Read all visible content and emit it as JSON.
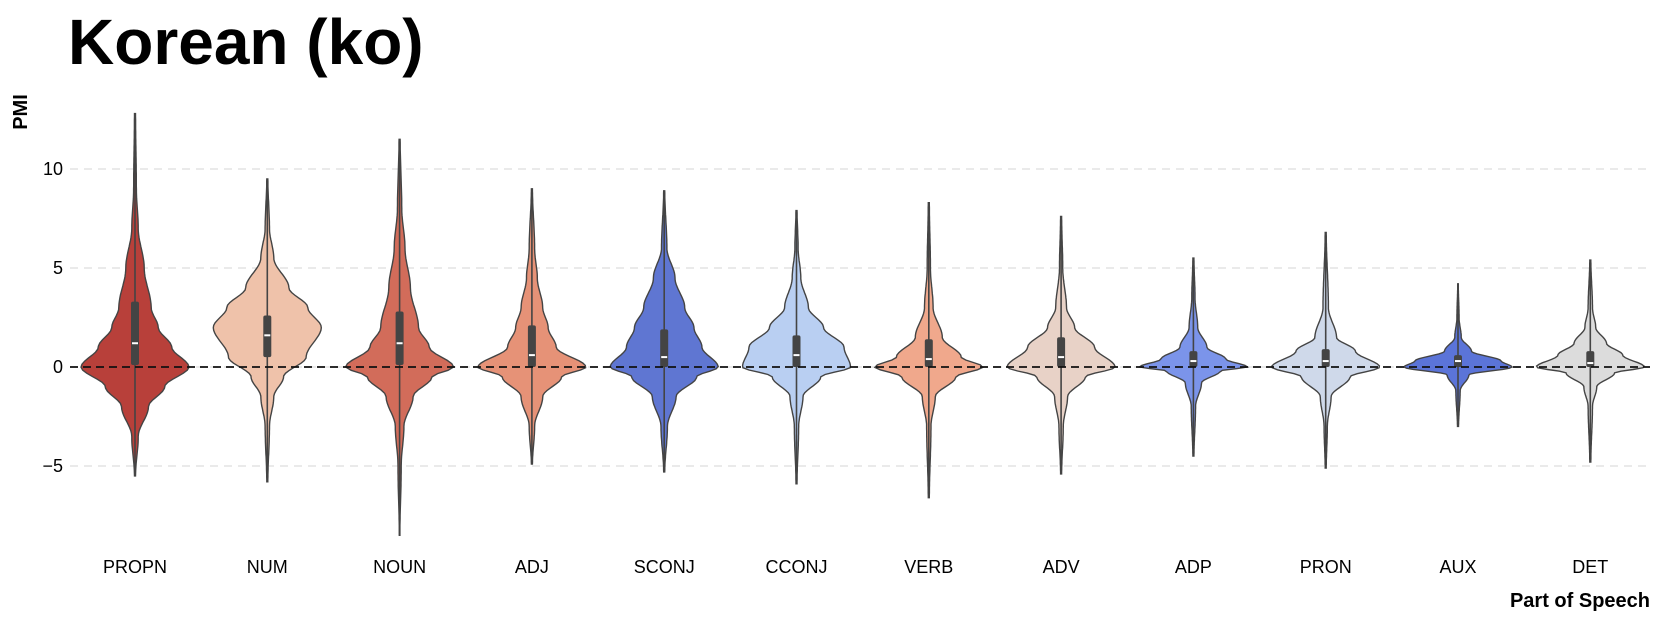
{
  "chart_data": {
    "type": "violin",
    "title": "Korean (ko)",
    "xlabel": "Part of Speech",
    "ylabel": "PMI",
    "ylim": [
      -8.8,
      13.5
    ],
    "yticks": [
      10,
      5,
      0,
      -5
    ],
    "ytick_labels": [
      "10",
      "5",
      "0",
      "−5"
    ],
    "grid": "horizontal dashed",
    "reference_line": 0,
    "categories": [
      "PROPN",
      "NUM",
      "NOUN",
      "ADJ",
      "SCONJ",
      "CCONJ",
      "VERB",
      "ADV",
      "ADP",
      "PRON",
      "AUX",
      "DET"
    ],
    "series": [
      {
        "category": "PROPN",
        "color": "#b8403a",
        "min": -5.5,
        "max": 12.8,
        "median": 1.2,
        "q1": 0.1,
        "q3": 3.3,
        "profile": [
          [
            -5.5,
            0.01
          ],
          [
            -3.5,
            0.06
          ],
          [
            -2,
            0.25
          ],
          [
            -1,
            0.55
          ],
          [
            0,
            1.0
          ],
          [
            1,
            0.68
          ],
          [
            2,
            0.43
          ],
          [
            3,
            0.3
          ],
          [
            5,
            0.17
          ],
          [
            7,
            0.06
          ],
          [
            9,
            0.025
          ],
          [
            12.8,
            0.01
          ]
        ]
      },
      {
        "category": "NUM",
        "color": "#efc2aa",
        "min": -5.8,
        "max": 9.5,
        "median": 1.6,
        "q1": 0.5,
        "q3": 2.6,
        "profile": [
          [
            -5.8,
            0.01
          ],
          [
            -3,
            0.04
          ],
          [
            -1.5,
            0.12
          ],
          [
            -0.5,
            0.3
          ],
          [
            0.5,
            0.72
          ],
          [
            2,
            1.0
          ],
          [
            3,
            0.75
          ],
          [
            4,
            0.4
          ],
          [
            5.5,
            0.12
          ],
          [
            7,
            0.04
          ],
          [
            9.5,
            0.01
          ]
        ]
      },
      {
        "category": "NOUN",
        "color": "#d26c5a",
        "min": -8.5,
        "max": 11.5,
        "median": 1.2,
        "q1": 0.1,
        "q3": 2.8,
        "profile": [
          [
            -8.5,
            0.005
          ],
          [
            -5,
            0.03
          ],
          [
            -3,
            0.08
          ],
          [
            -1.5,
            0.25
          ],
          [
            -0.5,
            0.6
          ],
          [
            0,
            1.0
          ],
          [
            1,
            0.55
          ],
          [
            2,
            0.35
          ],
          [
            4,
            0.2
          ],
          [
            6,
            0.1
          ],
          [
            8,
            0.04
          ],
          [
            11.5,
            0.01
          ]
        ]
      },
      {
        "category": "ADJ",
        "color": "#e69277",
        "min": -4.9,
        "max": 9.0,
        "median": 0.6,
        "q1": 0.0,
        "q3": 2.1,
        "profile": [
          [
            -4.9,
            0.01
          ],
          [
            -3,
            0.05
          ],
          [
            -1.5,
            0.2
          ],
          [
            -0.5,
            0.55
          ],
          [
            0,
            1.0
          ],
          [
            1,
            0.45
          ],
          [
            2,
            0.3
          ],
          [
            3,
            0.2
          ],
          [
            4.5,
            0.1
          ],
          [
            6,
            0.05
          ],
          [
            9,
            0.01
          ]
        ]
      },
      {
        "category": "SCONJ",
        "color": "#5f76d2",
        "min": -5.3,
        "max": 8.9,
        "median": 0.5,
        "q1": 0.0,
        "q3": 1.9,
        "profile": [
          [
            -5.3,
            0.01
          ],
          [
            -3,
            0.06
          ],
          [
            -1.5,
            0.22
          ],
          [
            -0.5,
            0.6
          ],
          [
            0,
            1.0
          ],
          [
            1,
            0.7
          ],
          [
            2,
            0.55
          ],
          [
            3,
            0.38
          ],
          [
            4.5,
            0.2
          ],
          [
            6,
            0.05
          ],
          [
            8.9,
            0.01
          ]
        ]
      },
      {
        "category": "CCONJ",
        "color": "#b9cff2",
        "min": -5.9,
        "max": 7.9,
        "median": 0.6,
        "q1": 0.0,
        "q3": 1.6,
        "profile": [
          [
            -5.9,
            0.01
          ],
          [
            -3,
            0.04
          ],
          [
            -1.5,
            0.12
          ],
          [
            -0.5,
            0.45
          ],
          [
            0,
            1.0
          ],
          [
            1,
            0.88
          ],
          [
            2,
            0.5
          ],
          [
            3,
            0.22
          ],
          [
            4.5,
            0.08
          ],
          [
            6,
            0.03
          ],
          [
            7.9,
            0.01
          ]
        ]
      },
      {
        "category": "VERB",
        "color": "#f0a88c",
        "min": -6.6,
        "max": 8.3,
        "median": 0.4,
        "q1": 0.0,
        "q3": 1.4,
        "profile": [
          [
            -6.6,
            0.01
          ],
          [
            -3,
            0.04
          ],
          [
            -1.5,
            0.12
          ],
          [
            -0.5,
            0.5
          ],
          [
            0,
            1.0
          ],
          [
            0.5,
            0.6
          ],
          [
            1.5,
            0.25
          ],
          [
            3,
            0.08
          ],
          [
            5,
            0.03
          ],
          [
            8.3,
            0.01
          ]
        ]
      },
      {
        "category": "ADV",
        "color": "#e8d2c7",
        "min": -5.4,
        "max": 7.6,
        "median": 0.5,
        "q1": 0.0,
        "q3": 1.5,
        "profile": [
          [
            -5.4,
            0.01
          ],
          [
            -3,
            0.04
          ],
          [
            -1.5,
            0.12
          ],
          [
            -0.5,
            0.45
          ],
          [
            0,
            1.0
          ],
          [
            1,
            0.62
          ],
          [
            2,
            0.25
          ],
          [
            3,
            0.1
          ],
          [
            5,
            0.03
          ],
          [
            7.6,
            0.01
          ]
        ]
      },
      {
        "category": "ADP",
        "color": "#7b94ea",
        "min": -4.5,
        "max": 5.5,
        "median": 0.3,
        "q1": 0.0,
        "q3": 0.8,
        "profile": [
          [
            -4.5,
            0.01
          ],
          [
            -2,
            0.04
          ],
          [
            -0.8,
            0.15
          ],
          [
            -0.2,
            0.5
          ],
          [
            0,
            1.0
          ],
          [
            0.4,
            0.6
          ],
          [
            1,
            0.25
          ],
          [
            2,
            0.08
          ],
          [
            3.5,
            0.03
          ],
          [
            5.5,
            0.01
          ]
        ]
      },
      {
        "category": "PRON",
        "color": "#cfd9ea",
        "min": -5.1,
        "max": 6.8,
        "median": 0.3,
        "q1": 0.0,
        "q3": 0.9,
        "profile": [
          [
            -5.1,
            0.01
          ],
          [
            -3,
            0.03
          ],
          [
            -1.5,
            0.1
          ],
          [
            -0.5,
            0.45
          ],
          [
            0,
            1.0
          ],
          [
            0.8,
            0.55
          ],
          [
            1.5,
            0.2
          ],
          [
            3,
            0.05
          ],
          [
            6.8,
            0.01
          ]
        ]
      },
      {
        "category": "AUX",
        "color": "#5b74d8",
        "min": -3.0,
        "max": 4.2,
        "median": 0.3,
        "q1": 0.0,
        "q3": 0.6,
        "profile": [
          [
            -3,
            0.01
          ],
          [
            -1.2,
            0.04
          ],
          [
            -0.4,
            0.2
          ],
          [
            0,
            1.0
          ],
          [
            0.3,
            0.8
          ],
          [
            0.8,
            0.25
          ],
          [
            1.5,
            0.06
          ],
          [
            2.5,
            0.02
          ],
          [
            4.2,
            0.005
          ]
        ]
      },
      {
        "category": "DET",
        "color": "#dcdcdc",
        "min": -4.8,
        "max": 5.4,
        "median": 0.2,
        "q1": 0.0,
        "q3": 0.8,
        "profile": [
          [
            -4.8,
            0.01
          ],
          [
            -2,
            0.04
          ],
          [
            -1,
            0.12
          ],
          [
            -0.3,
            0.45
          ],
          [
            0,
            1.0
          ],
          [
            0.6,
            0.6
          ],
          [
            1.2,
            0.3
          ],
          [
            2,
            0.1
          ],
          [
            3,
            0.04
          ],
          [
            5.4,
            0.01
          ]
        ]
      }
    ]
  }
}
